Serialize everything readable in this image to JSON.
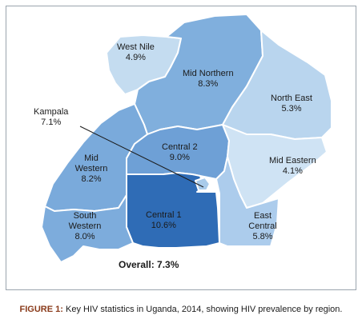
{
  "figure": {
    "regions": [
      {
        "id": "west-nile",
        "name": "West Nile",
        "prevalence": "4.9%",
        "color": "#c4dcf0"
      },
      {
        "id": "mid-northern",
        "name": "Mid Northern",
        "prevalence": "8.3%",
        "color": "#80afdd"
      },
      {
        "id": "north-east",
        "name": "North East",
        "prevalence": "5.3%",
        "color": "#b9d5ee"
      },
      {
        "id": "central-2",
        "name": "Central 2",
        "prevalence": "9.0%",
        "color": "#6ea0d6"
      },
      {
        "id": "kampala",
        "name": "Kampala",
        "prevalence": "7.1%",
        "color": "#a9cbea"
      },
      {
        "id": "mid-western",
        "name": "Mid Western",
        "prevalence": "8.2%",
        "color": "#7aaadb"
      },
      {
        "id": "mid-eastern",
        "name": "Mid Eastern",
        "prevalence": "4.1%",
        "color": "#cfe3f4"
      },
      {
        "id": "central-1",
        "name": "Central 1",
        "prevalence": "10.6%",
        "color": "#2f6cb6"
      },
      {
        "id": "east-central",
        "name": "East Central",
        "prevalence": "5.8%",
        "color": "#acccec"
      },
      {
        "id": "south-western",
        "name": "South Western",
        "prevalence": "8.0%",
        "color": "#7dacdc"
      }
    ],
    "overall": "Overall: 7.3%"
  },
  "caption": {
    "label": "FIGURE 1:",
    "text": " Key HIV statistics in Uganda, 2014, showing HIV prevalence by region."
  }
}
